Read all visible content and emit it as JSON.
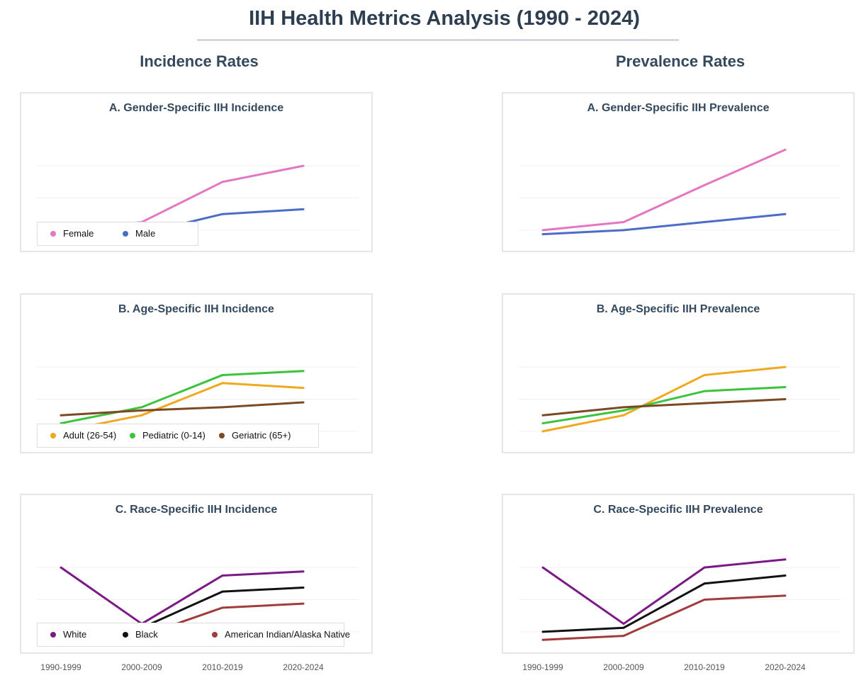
{
  "title": "IIH Health Metrics Analysis (1990 - 2024)",
  "columns": [
    "Incidence Rates",
    "Prevalence Rates"
  ],
  "x_categories": [
    "1990-1999",
    "2000-2009",
    "2010-2019",
    "2020-2024"
  ],
  "chart_data": [
    {
      "id": "inc-gender",
      "type": "line",
      "title": "A. Gender-Specific IIH Incidence",
      "ylim": [
        0,
        10
      ],
      "grid": true,
      "legend": "bottom-left",
      "series": [
        {
          "name": "Female",
          "color": "#e377c2",
          "values": [
            3.0,
            3.5,
            6.0,
            7.0
          ]
        },
        {
          "name": "Male",
          "color": "#4c6cc7",
          "values": [
            2.5,
            2.8,
            4.0,
            4.3
          ]
        }
      ]
    },
    {
      "id": "prev-gender",
      "type": "line",
      "title": "A. Gender-Specific IIH Prevalence",
      "ylim": [
        0,
        10
      ],
      "grid": true,
      "legend": "none",
      "series": [
        {
          "name": "Female",
          "color": "#e377c2",
          "values": [
            3.0,
            3.5,
            5.8,
            8.0
          ]
        },
        {
          "name": "Male",
          "color": "#4c6cc7",
          "values": [
            2.75,
            3.0,
            3.5,
            4.0
          ]
        }
      ]
    },
    {
      "id": "inc-age",
      "type": "line",
      "title": "B. Age-Specific IIH Incidence",
      "ylim": [
        0,
        10
      ],
      "grid": true,
      "legend": "bottom-left",
      "series": [
        {
          "name": "Adult (26-54)",
          "color": "#f0a820",
          "values": [
            3.0,
            4.0,
            6.0,
            5.7
          ]
        },
        {
          "name": "Pediatric (0-14)",
          "color": "#3cc33c",
          "values": [
            3.5,
            4.5,
            6.5,
            6.75
          ]
        },
        {
          "name": "Geriatric (65+)",
          "color": "#7b4a24",
          "values": [
            4.0,
            4.3,
            4.5,
            4.8
          ]
        }
      ]
    },
    {
      "id": "prev-age",
      "type": "line",
      "title": "B. Age-Specific IIH Prevalence",
      "ylim": [
        0,
        10
      ],
      "grid": true,
      "legend": "none",
      "series": [
        {
          "name": "Adult (26-54)",
          "color": "#f0a820",
          "values": [
            3.0,
            4.0,
            6.5,
            7.0
          ]
        },
        {
          "name": "Pediatric (0-14)",
          "color": "#3cc33c",
          "values": [
            3.5,
            4.3,
            5.5,
            5.75
          ]
        },
        {
          "name": "Geriatric (65+)",
          "color": "#7b4a24",
          "values": [
            4.0,
            4.5,
            4.75,
            5.0
          ]
        }
      ]
    },
    {
      "id": "inc-race",
      "type": "line",
      "title": "C. Race-Specific IIH Incidence",
      "ylim": [
        0,
        10
      ],
      "grid": true,
      "legend": "bottom-left",
      "series": [
        {
          "name": "White",
          "color": "#7b1a86",
          "values": [
            7.0,
            3.5,
            6.5,
            6.75
          ]
        },
        {
          "name": "Black",
          "color": "#111111",
          "values": [
            3.0,
            3.25,
            5.5,
            5.75
          ]
        },
        {
          "name": "American Indian/Alaska Native",
          "color": "#a23b3b",
          "values": [
            2.5,
            2.75,
            4.5,
            4.75
          ]
        }
      ]
    },
    {
      "id": "prev-race",
      "type": "line",
      "title": "C. Race-Specific IIH Prevalence",
      "ylim": [
        0,
        10
      ],
      "grid": true,
      "legend": "none",
      "series": [
        {
          "name": "White",
          "color": "#7b1a86",
          "values": [
            7.0,
            3.5,
            7.0,
            7.5
          ]
        },
        {
          "name": "Black",
          "color": "#111111",
          "values": [
            3.0,
            3.25,
            6.0,
            6.5
          ]
        },
        {
          "name": "American Indian/Alaska Native",
          "color": "#a23b3b",
          "values": [
            2.5,
            2.75,
            5.0,
            5.25
          ]
        }
      ]
    }
  ]
}
